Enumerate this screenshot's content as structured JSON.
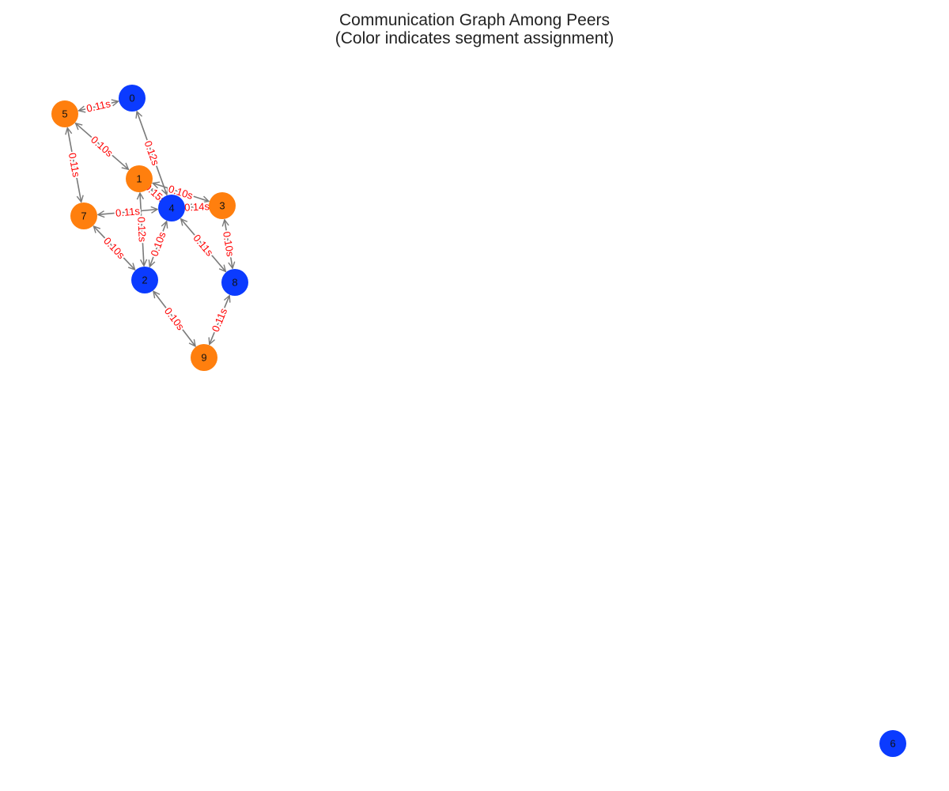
{
  "title": {
    "line1": "Communication Graph Among Peers",
    "line2": "(Color indicates segment assignment)"
  },
  "colors": {
    "segment_a": "#0b3bff",
    "segment_b": "#ff7f0e",
    "edge": "#7a7a7a",
    "edge_label": "#ff0000"
  },
  "nodes": [
    {
      "id": "0",
      "segment": "segment_a"
    },
    {
      "id": "1",
      "segment": "segment_b"
    },
    {
      "id": "2",
      "segment": "segment_a"
    },
    {
      "id": "3",
      "segment": "segment_b"
    },
    {
      "id": "4",
      "segment": "segment_a"
    },
    {
      "id": "5",
      "segment": "segment_b"
    },
    {
      "id": "6",
      "segment": "segment_a"
    },
    {
      "id": "7",
      "segment": "segment_b"
    },
    {
      "id": "8",
      "segment": "segment_a"
    },
    {
      "id": "9",
      "segment": "segment_b"
    }
  ],
  "edges": [
    {
      "source": "5",
      "target": "0",
      "label": "0.11s"
    },
    {
      "source": "5",
      "target": "1",
      "label": "0.10s"
    },
    {
      "source": "5",
      "target": "7",
      "label": "0.11s"
    },
    {
      "source": "0",
      "target": "4",
      "label": "0.12s"
    },
    {
      "source": "1",
      "target": "4",
      "label": "0.15s"
    },
    {
      "source": "1",
      "target": "3",
      "label": "0.10s"
    },
    {
      "source": "1",
      "target": "2",
      "label": "0.12s"
    },
    {
      "source": "4",
      "target": "7",
      "label": "0.11s"
    },
    {
      "source": "4",
      "target": "3",
      "label": "0.14s"
    },
    {
      "source": "4",
      "target": "2",
      "label": "0.10s"
    },
    {
      "source": "4",
      "target": "8",
      "label": "0.11s"
    },
    {
      "source": "7",
      "target": "2",
      "label": "0.10s"
    },
    {
      "source": "3",
      "target": "8",
      "label": "0.10s"
    },
    {
      "source": "2",
      "target": "9",
      "label": "0.10s"
    },
    {
      "source": "8",
      "target": "9",
      "label": "0.11s"
    }
  ]
}
